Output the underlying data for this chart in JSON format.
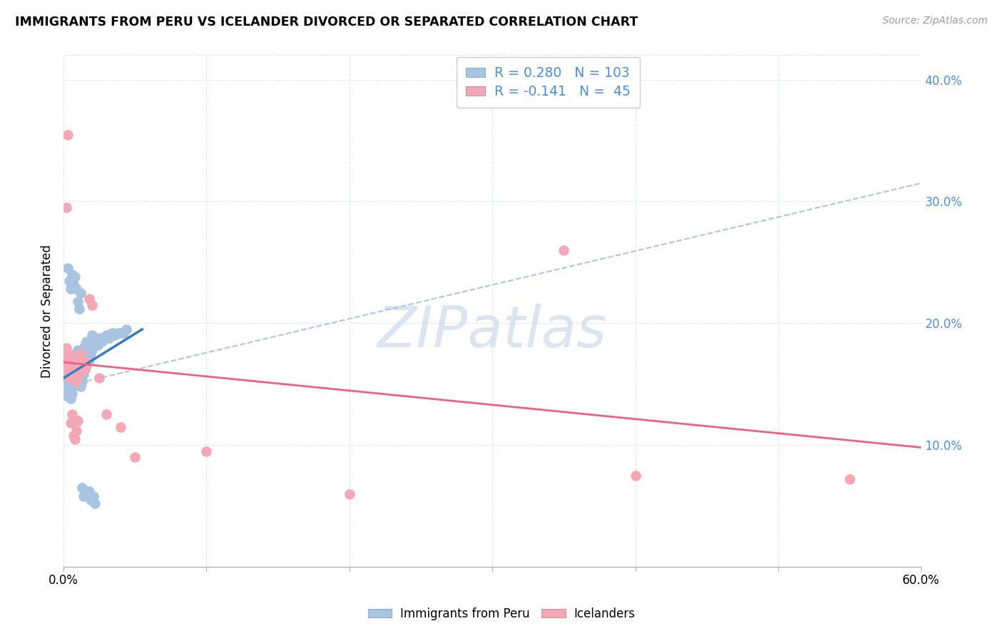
{
  "title": "IMMIGRANTS FROM PERU VS ICELANDER DIVORCED OR SEPARATED CORRELATION CHART",
  "source": "Source: ZipAtlas.com",
  "ylabel": "Divorced or Separated",
  "x_min": 0.0,
  "x_max": 0.6,
  "y_min": 0.0,
  "y_max": 0.42,
  "x_tick_positions": [
    0.0,
    0.1,
    0.2,
    0.3,
    0.4,
    0.5,
    0.6
  ],
  "x_tick_labels": [
    "0.0%",
    "",
    "",
    "",
    "",
    "",
    "60.0%"
  ],
  "y_tick_positions": [
    0.1,
    0.2,
    0.3,
    0.4
  ],
  "y_tick_labels": [
    "10.0%",
    "20.0%",
    "30.0%",
    "40.0%"
  ],
  "legend_labels": [
    "Immigrants from Peru",
    "Icelanders"
  ],
  "blue_color": "#a8c4e0",
  "pink_color": "#f4a7b5",
  "blue_line_color": "#3a7abf",
  "pink_line_color": "#f06080",
  "dashed_line_color": "#b0c4d8",
  "legend_text_color": "#4a90d9",
  "R_blue": 0.28,
  "N_blue": 103,
  "R_pink": -0.141,
  "N_pink": 45,
  "watermark": "ZIPatlas",
  "watermark_color": "#ccdaeb",
  "grid_color": "#dde5ee",
  "blue_scatter_x": [
    0.001,
    0.001,
    0.002,
    0.002,
    0.002,
    0.002,
    0.003,
    0.003,
    0.003,
    0.003,
    0.003,
    0.004,
    0.004,
    0.004,
    0.004,
    0.005,
    0.005,
    0.005,
    0.005,
    0.005,
    0.006,
    0.006,
    0.006,
    0.006,
    0.006,
    0.007,
    0.007,
    0.007,
    0.007,
    0.008,
    0.008,
    0.008,
    0.009,
    0.009,
    0.009,
    0.01,
    0.01,
    0.01,
    0.01,
    0.011,
    0.011,
    0.011,
    0.012,
    0.012,
    0.012,
    0.013,
    0.013,
    0.013,
    0.014,
    0.014,
    0.014,
    0.015,
    0.015,
    0.015,
    0.016,
    0.016,
    0.016,
    0.017,
    0.017,
    0.018,
    0.018,
    0.019,
    0.019,
    0.02,
    0.02,
    0.021,
    0.022,
    0.023,
    0.024,
    0.025,
    0.026,
    0.027,
    0.028,
    0.029,
    0.03,
    0.031,
    0.032,
    0.034,
    0.036,
    0.038,
    0.04,
    0.042,
    0.044,
    0.003,
    0.004,
    0.005,
    0.006,
    0.007,
    0.008,
    0.009,
    0.01,
    0.011,
    0.012,
    0.013,
    0.014,
    0.015,
    0.016,
    0.017,
    0.018,
    0.019,
    0.02,
    0.021,
    0.022
  ],
  "blue_scatter_y": [
    0.155,
    0.148,
    0.152,
    0.145,
    0.16,
    0.168,
    0.14,
    0.155,
    0.162,
    0.148,
    0.158,
    0.145,
    0.155,
    0.162,
    0.15,
    0.138,
    0.148,
    0.155,
    0.162,
    0.17,
    0.142,
    0.15,
    0.158,
    0.165,
    0.172,
    0.148,
    0.158,
    0.165,
    0.172,
    0.155,
    0.162,
    0.17,
    0.15,
    0.16,
    0.17,
    0.155,
    0.162,
    0.17,
    0.178,
    0.158,
    0.165,
    0.175,
    0.148,
    0.158,
    0.168,
    0.152,
    0.162,
    0.172,
    0.158,
    0.168,
    0.178,
    0.162,
    0.172,
    0.182,
    0.165,
    0.175,
    0.185,
    0.168,
    0.178,
    0.17,
    0.182,
    0.175,
    0.185,
    0.178,
    0.19,
    0.182,
    0.185,
    0.188,
    0.182,
    0.185,
    0.188,
    0.185,
    0.188,
    0.188,
    0.19,
    0.188,
    0.188,
    0.192,
    0.19,
    0.192,
    0.192,
    0.192,
    0.195,
    0.245,
    0.235,
    0.228,
    0.24,
    0.232,
    0.238,
    0.228,
    0.218,
    0.212,
    0.225,
    0.065,
    0.058,
    0.062,
    0.06,
    0.058,
    0.062,
    0.055,
    0.055,
    0.058,
    0.052
  ],
  "pink_scatter_x": [
    0.001,
    0.002,
    0.002,
    0.003,
    0.003,
    0.004,
    0.004,
    0.005,
    0.005,
    0.006,
    0.006,
    0.007,
    0.007,
    0.008,
    0.008,
    0.009,
    0.009,
    0.01,
    0.01,
    0.011,
    0.012,
    0.013,
    0.014,
    0.015,
    0.016,
    0.018,
    0.02,
    0.025,
    0.03,
    0.04,
    0.05,
    0.1,
    0.2,
    0.35,
    0.4,
    0.55,
    0.002,
    0.003,
    0.004,
    0.005,
    0.006,
    0.007,
    0.008,
    0.009,
    0.01
  ],
  "pink_scatter_y": [
    0.175,
    0.168,
    0.18,
    0.162,
    0.172,
    0.165,
    0.175,
    0.158,
    0.17,
    0.162,
    0.172,
    0.155,
    0.168,
    0.158,
    0.17,
    0.152,
    0.165,
    0.158,
    0.168,
    0.162,
    0.175,
    0.168,
    0.165,
    0.162,
    0.168,
    0.22,
    0.215,
    0.155,
    0.125,
    0.115,
    0.09,
    0.095,
    0.06,
    0.26,
    0.075,
    0.072,
    0.295,
    0.355,
    0.155,
    0.118,
    0.125,
    0.108,
    0.105,
    0.112,
    0.12
  ],
  "blue_trend_x": [
    0.0,
    0.055
  ],
  "blue_trend_y": [
    0.155,
    0.195
  ],
  "dashed_trend_x": [
    0.0,
    0.6
  ],
  "dashed_trend_y": [
    0.148,
    0.315
  ],
  "pink_trend_x": [
    0.0,
    0.6
  ],
  "pink_trend_y": [
    0.168,
    0.098
  ]
}
